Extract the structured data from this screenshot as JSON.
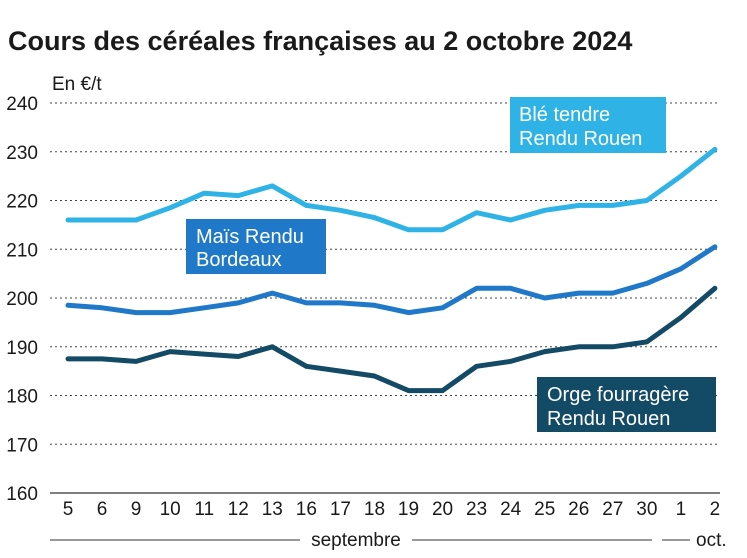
{
  "chart_data": {
    "type": "line",
    "title": "Cours des céréales françaises au 2 octobre 2024",
    "unit_label": "En €/t",
    "ylim": [
      160,
      240
    ],
    "yticks": [
      160,
      170,
      180,
      190,
      200,
      210,
      220,
      230,
      240
    ],
    "grid": "horizontal-dashed",
    "categories": [
      "5",
      "6",
      "9",
      "10",
      "11",
      "12",
      "13",
      "16",
      "17",
      "18",
      "19",
      "20",
      "23",
      "24",
      "25",
      "26",
      "27",
      "30",
      "1",
      "2"
    ],
    "month_labels": [
      {
        "label": "septembre",
        "from": 0,
        "to": 17
      },
      {
        "label": "oct.",
        "from": 18,
        "to": 19
      }
    ],
    "series": [
      {
        "name_lines": [
          "Blé tendre",
          "Rendu Rouen"
        ],
        "color": "#2fb3e6",
        "values": [
          216,
          216,
          216,
          218.5,
          221.5,
          221,
          223,
          219,
          218,
          216.5,
          214,
          214,
          217.5,
          216,
          218,
          219,
          219,
          220,
          225,
          230.5
        ]
      },
      {
        "name_lines": [
          "Maïs Rendu",
          "Bordeaux"
        ],
        "color": "#1f78c8",
        "values": [
          198.5,
          198,
          197,
          197,
          198,
          199,
          201,
          199,
          199,
          198.5,
          197,
          198,
          202,
          202,
          200,
          201,
          201,
          203,
          206,
          210.5
        ]
      },
      {
        "name_lines": [
          "Orge fourragère",
          "Rendu Rouen"
        ],
        "color": "#134a66",
        "values": [
          187.5,
          187.5,
          187,
          189,
          188.5,
          188,
          190,
          186,
          185,
          184,
          181,
          181,
          186,
          187,
          189,
          190,
          190,
          191,
          196,
          202
        ]
      }
    ]
  }
}
